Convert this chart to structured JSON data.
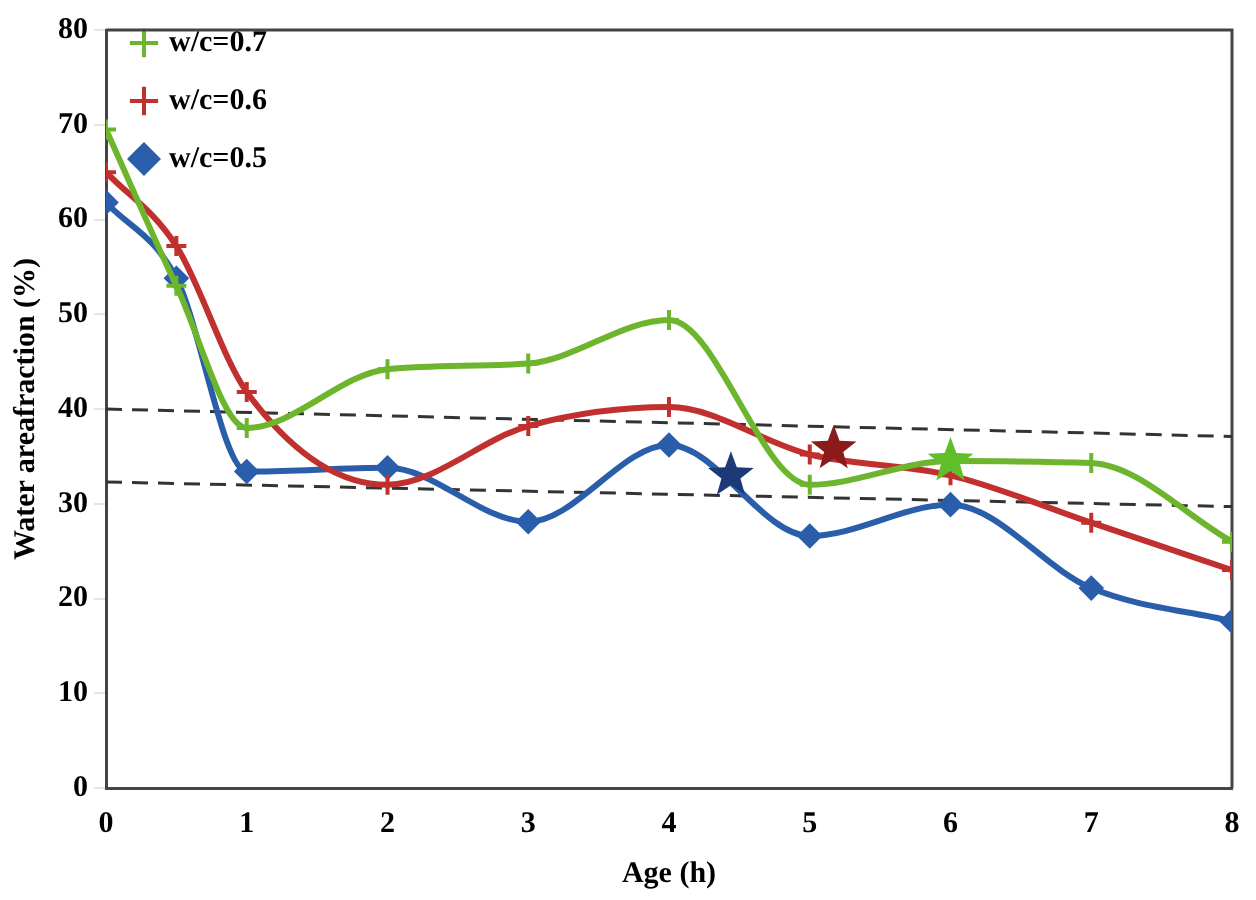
{
  "chart_data": {
    "type": "line",
    "xlabel": "Age (h)",
    "ylabel": "Water areafraction (%)",
    "x": [
      0,
      0.5,
      1,
      2,
      3,
      4,
      5,
      6,
      7,
      8
    ],
    "series": [
      {
        "name": "w/c=0.7",
        "color": "#6cb52d",
        "marker": "cross",
        "values": [
          69.5,
          53,
          38,
          44.2,
          44.8,
          49.4,
          32,
          34.5,
          34.3,
          26
        ]
      },
      {
        "name": "w/c=0.6",
        "color": "#c0302e",
        "marker": "cross",
        "values": [
          65,
          57.2,
          41.8,
          32,
          38.2,
          40.2,
          35.2,
          33,
          28,
          23
        ]
      },
      {
        "name": "w/c=0.5",
        "color": "#2a5eab",
        "marker": "diamond",
        "values": [
          61.8,
          53.8,
          33.4,
          33.8,
          28.1,
          36.2,
          26.6,
          29.9,
          21.1,
          17.6
        ]
      },
      {
        "type": "line",
        "color": "#333333",
        "line_style": "dashed",
        "marker": "none",
        "x": [
          0,
          8
        ],
        "values": [
          40,
          37.1
        ]
      },
      {
        "type": "line",
        "color": "#333333",
        "line_style": "dashed",
        "marker": "none",
        "x": [
          0,
          8
        ],
        "values": [
          32.3,
          29.7
        ]
      },
      {
        "type": "scatter",
        "color": "#8b1a1a",
        "marker": "star",
        "x": [
          5.17
        ],
        "values": [
          35.8
        ]
      },
      {
        "type": "scatter",
        "color": "#1c3a78",
        "marker": "star",
        "x": [
          4.44
        ],
        "values": [
          33
        ]
      },
      {
        "type": "scatter",
        "color": "#5fbf2a",
        "marker": "star",
        "x": [
          6
        ],
        "values": [
          34.5
        ]
      }
    ],
    "xlim": [
      0,
      8
    ],
    "xticks": [
      0,
      1,
      2,
      3,
      4,
      5,
      6,
      7,
      8
    ],
    "ylim": [
      0,
      80
    ],
    "yticks": [
      0,
      10,
      20,
      30,
      40,
      50,
      60,
      70,
      80
    ],
    "grid": false,
    "legend": "top left",
    "line_style": "solid"
  }
}
